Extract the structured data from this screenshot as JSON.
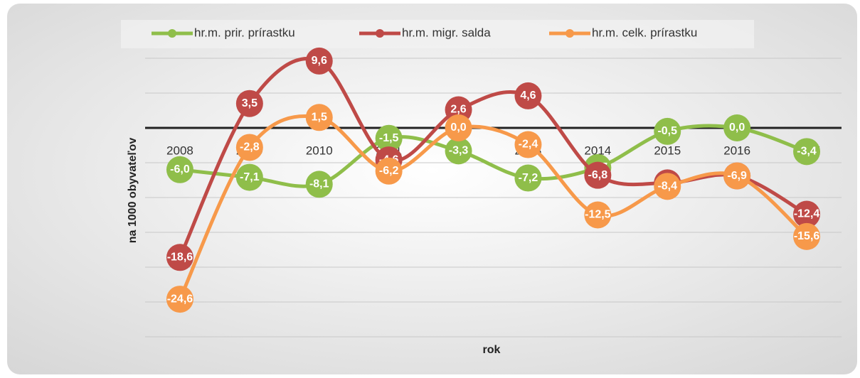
{
  "chart_data": {
    "type": "line",
    "x_label": "rok",
    "y_label": "na 1000 obyvateľov",
    "categories": [
      "2008",
      "2009",
      "2010",
      "2011",
      "2012",
      "2013",
      "2014",
      "2015",
      "2016",
      "2017"
    ],
    "series": [
      {
        "name": "hr.m. prir. prírastku",
        "color": "#8fbe4a",
        "values": [
          -6.0,
          -7.1,
          -8.1,
          -1.5,
          -3.3,
          -7.2,
          -5.7,
          -0.5,
          0.0,
          -3.4
        ],
        "value_labels": [
          "-6,0",
          "-7,1",
          "-8,1",
          "-1,5",
          "-3,3",
          "-7,2",
          "-5,7",
          "-0,5",
          "0,0",
          "-3,4"
        ]
      },
      {
        "name": "hr.m. migr. salda",
        "color": "#bf4a47",
        "values": [
          -18.6,
          3.5,
          9.6,
          -4.6,
          2.6,
          4.6,
          -6.8,
          -7.9,
          -6.9,
          -12.4
        ],
        "value_labels": [
          "-18,6",
          "3,5",
          "9,6",
          "-4,6",
          "2,6",
          "4,6",
          "-6,8",
          "-7,9",
          "-6,9",
          "-12,4"
        ]
      },
      {
        "name": "hr.m. celk. prírastku",
        "color": "#f7994a",
        "values": [
          -24.6,
          -2.8,
          1.5,
          -6.2,
          0.0,
          -2.4,
          -12.5,
          -8.4,
          -6.9,
          -15.6
        ],
        "value_labels": [
          "-24,6",
          "-2,8",
          "1,5",
          "-6,2",
          "0,0",
          "-2,4",
          "-12,5",
          "-8,4",
          "-6,9",
          "-15,6"
        ]
      }
    ],
    "ylim": [
      -30,
      15
    ],
    "yticks": [
      -30,
      -25,
      -20,
      -15,
      -10,
      -5,
      0,
      5,
      10
    ],
    "grid": true,
    "legend": "top"
  }
}
